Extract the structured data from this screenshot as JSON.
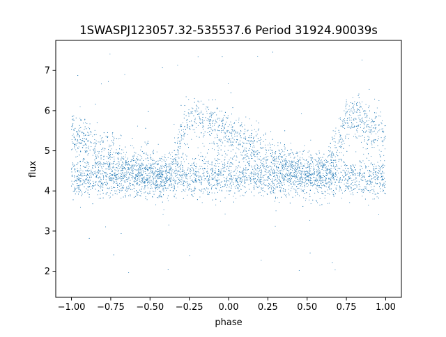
{
  "chart_data": {
    "type": "scatter",
    "title": "1SWASPJ123057.32-535537.6 Period 31924.90039s",
    "xlabel": "phase",
    "ylabel": "flux",
    "xlim": [
      -1.1,
      1.1
    ],
    "ylim": [
      1.35,
      7.75
    ],
    "xticks": [
      -1.0,
      -0.75,
      -0.5,
      -0.25,
      0.0,
      0.25,
      0.5,
      0.75,
      1.0
    ],
    "xtick_labels": [
      "−1.00",
      "−0.75",
      "−0.50",
      "−0.25",
      "0.00",
      "0.25",
      "0.50",
      "0.75",
      "1.00"
    ],
    "yticks": [
      2,
      3,
      4,
      5,
      6,
      7
    ],
    "ytick_labels": [
      "2",
      "3",
      "4",
      "5",
      "6",
      "7"
    ],
    "grid": false,
    "legend": "none",
    "marker_color": "#1f77b4",
    "series": [
      {
        "phase_range": [
          -1.0,
          1.0
        ],
        "baseline_flux": 4.35,
        "baseline_scatter": 0.25,
        "branch_profile": [
          {
            "phase": -1.0,
            "flux": 5.45
          },
          {
            "phase": -0.85,
            "flux": 5.05
          },
          {
            "phase": -0.7,
            "flux": 4.75
          },
          {
            "phase": -0.55,
            "flux": 4.5
          },
          {
            "phase": -0.4,
            "flux": 4.35
          },
          {
            "phase": -0.32,
            "flux": 5.0
          },
          {
            "phase": -0.25,
            "flux": 5.8
          },
          {
            "phase": -0.18,
            "flux": 5.85
          },
          {
            "phase": -0.1,
            "flux": 5.6
          },
          {
            "phase": 0.0,
            "flux": 5.45
          },
          {
            "phase": 0.15,
            "flux": 5.05
          },
          {
            "phase": 0.3,
            "flux": 4.75
          },
          {
            "phase": 0.45,
            "flux": 4.5
          },
          {
            "phase": 0.6,
            "flux": 4.35
          },
          {
            "phase": 0.68,
            "flux": 5.0
          },
          {
            "phase": 0.75,
            "flux": 5.8
          },
          {
            "phase": 0.82,
            "flux": 5.85
          },
          {
            "phase": 0.9,
            "flux": 5.6
          },
          {
            "phase": 1.0,
            "flux": 5.45
          }
        ],
        "branch_scatter": 0.28,
        "outlier_flux_range": [
          1.6,
          7.5
        ]
      }
    ]
  }
}
